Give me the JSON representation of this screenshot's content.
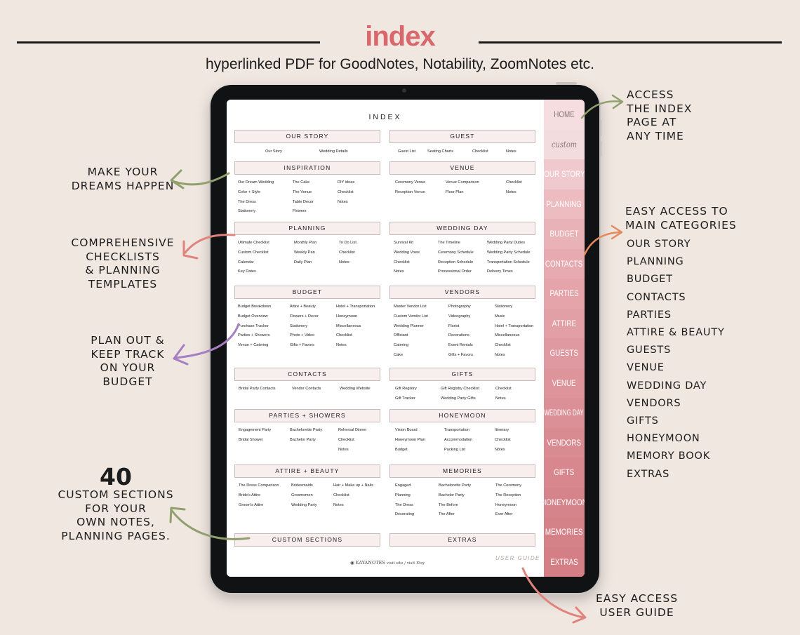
{
  "header": {
    "title": "index",
    "subtitle": "hyperlinked PDF for GoodNotes, Notability, ZoomNotes etc."
  },
  "annotations": {
    "make_dreams": [
      "MAKE YOUR",
      "DREAMS HAPPEN"
    ],
    "checklists": [
      "COMPREHENSIVE",
      "CHECKLISTS",
      "& PLANNING",
      "TEMPLATES"
    ],
    "budget": [
      "PLAN OUT &",
      "KEEP TRACK",
      "ON YOUR",
      "BUDGET"
    ],
    "custom_count": "40",
    "custom": [
      "CUSTOM SECTIONS",
      "FOR YOUR",
      "OWN NOTES,",
      "PLANNING PAGES."
    ],
    "access_index": [
      "ACCESS",
      "THE INDEX",
      "PAGE AT",
      "ANY TIME"
    ],
    "easy_access": [
      "EASY ACCESS TO",
      "MAIN CATEGORIES"
    ],
    "categories": [
      "OUR STORY",
      "PLANNING",
      "BUDGET",
      "CONTACTS",
      "PARTIES",
      "ATTIRE & BEAUTY",
      "GUESTS",
      "VENUE",
      "WEDDING DAY",
      "VENDORS",
      "GIFTS",
      "HONEYMOON",
      "MEMORY BOOK",
      "EXTRAS"
    ],
    "user_guide": [
      "EASY ACCESS",
      "USER GUIDE"
    ]
  },
  "colors": {
    "accent": "#d9686c",
    "background": "#f1e7e1",
    "arrow_green": "#8fa06e",
    "arrow_coral": "#e0837c",
    "arrow_purple": "#a57fc2",
    "arrow_orange": "#e48a5c"
  },
  "index_page": {
    "title": "INDEX",
    "sections": [
      {
        "title": "OUR STORY",
        "links": [
          [
            "Our Story",
            "Wedding Details"
          ]
        ]
      },
      {
        "title": "GUEST",
        "links": [
          [
            "Guest List",
            "Seating Charts",
            "Checklist",
            "Notes"
          ]
        ]
      },
      {
        "title": "INSPIRATION",
        "links": [
          [
            "Our Dream Wedding",
            "The Cake",
            "DIY ideas"
          ],
          [
            "Color + Style",
            "The Venue",
            "Checklist"
          ],
          [
            "The Dress",
            "Table Decor",
            "Notes"
          ],
          [
            "Stationery",
            "Flowers",
            ""
          ]
        ]
      },
      {
        "title": "VENUE",
        "links": [
          [
            "Ceremony Venue",
            "Venue Comparison",
            "Checklist"
          ],
          [
            "Reception Venue",
            "Floor Plan",
            "Notes"
          ]
        ]
      },
      {
        "title": "PLANNING",
        "links": [
          [
            "Ultimate Checklist",
            "Monthly Plan",
            "To Do List"
          ],
          [
            "Custom Checklist",
            "Weekly Pan",
            "Checklist"
          ],
          [
            "Calendar",
            "Daily Plan",
            "Notes"
          ],
          [
            "Key Dates",
            "",
            ""
          ]
        ]
      },
      {
        "title": "WEDDING DAY",
        "links": [
          [
            "Survival Kit",
            "The Timeline",
            "Wedding Party Duties"
          ],
          [
            "Wedding Vows",
            "Ceremony Schedule",
            "Wedding Party Schedule"
          ],
          [
            "Checklist",
            "Reception Schedule",
            "Transportation Schedule"
          ],
          [
            "Notes",
            "Processional Order",
            "Delivery Times"
          ]
        ]
      },
      {
        "title": "BUDGET",
        "links": [
          [
            "Budget Breakdown",
            "Attire + Beauty",
            "Hotel + Transportation"
          ],
          [
            "Budget Overview",
            "Flowers + Decor",
            "Honeymoon"
          ],
          [
            "Purchase Tracker",
            "Stationery",
            "Miscellaneous"
          ],
          [
            "Parties + Showers",
            "Photo + Video",
            "Checklist"
          ],
          [
            "Venue + Catering",
            "Gifts + Favors",
            "Notes"
          ]
        ]
      },
      {
        "title": "VENDORS",
        "links": [
          [
            "Master Vendor List",
            "Photography",
            "Stationery"
          ],
          [
            "Custom Vendor List",
            "Videography",
            "Music"
          ],
          [
            "Wedding Planner",
            "Florist",
            "Hotel + Transportation"
          ],
          [
            "Officiant",
            "Decorations",
            "Miscellaneous"
          ],
          [
            "Catering",
            "Event Rentals",
            "Checklist"
          ],
          [
            "Cake",
            "Gifts + Favors",
            "Notes"
          ]
        ]
      },
      {
        "title": "CONTACTS",
        "links": [
          [
            "Bridal Party Contacts",
            "Vendor Contacts",
            "Wedding Website"
          ]
        ]
      },
      {
        "title": "GIFTS",
        "links": [
          [
            "Gift Registry",
            "Gift Registry Checklist",
            "Checklist"
          ],
          [
            "Gift Tracker",
            "Wedding Party Gifts",
            "Notes"
          ]
        ]
      },
      {
        "title": "PARTIES + SHOWERS",
        "links": [
          [
            "Engagement Party",
            "Bachelorette Party",
            "Rehersal Dinner"
          ],
          [
            "Bridal Shower",
            "Bachelor Party",
            "Checklist"
          ],
          [
            "",
            "",
            "Notes"
          ]
        ]
      },
      {
        "title": "HONEYMOON",
        "links": [
          [
            "Vision Board",
            "Transportation",
            "Itinerary"
          ],
          [
            "Honeymoon Plan",
            "Accommodation",
            "Checklist"
          ],
          [
            "Budget",
            "Packing List",
            "Notes"
          ]
        ]
      },
      {
        "title": "ATTIRE + BEAUTY",
        "links": [
          [
            "The Dress Comparison",
            "Bridesmaids",
            "Hair + Make up + Nails"
          ],
          [
            "Bride's Attire",
            "Groomsmen",
            "Checklist"
          ],
          [
            "Groom's Attire",
            "Wedding Party",
            "Notes"
          ]
        ]
      },
      {
        "title": "MEMORIES",
        "links": [
          [
            "Engaged",
            "Bachelorette Party",
            "The Ceremony"
          ],
          [
            "Planning",
            "Bachelor Party",
            "The Reception"
          ],
          [
            "The Dress",
            "The Before",
            "Honeymoon"
          ],
          [
            "Decorating",
            "The After",
            "Ever After"
          ]
        ]
      },
      {
        "title": "CUSTOM SECTIONS",
        "links": []
      },
      {
        "title": "EXTRAS",
        "links": []
      }
    ],
    "footer_brand": "KAYANOTES",
    "footer_links": "visit site / visit Etsy",
    "user_guide": "USER GUIDE"
  },
  "tabs": [
    "HOME",
    "custom",
    "OUR STORY",
    "PLANNING",
    "BUDGET",
    "CONTACTS",
    "PARTIES",
    "ATTIRE",
    "GUESTS",
    "VENUE",
    "WEDDING DAY",
    "VENDORS",
    "GIFTS",
    "HONEYMOON",
    "MEMORIES",
    "EXTRAS"
  ]
}
